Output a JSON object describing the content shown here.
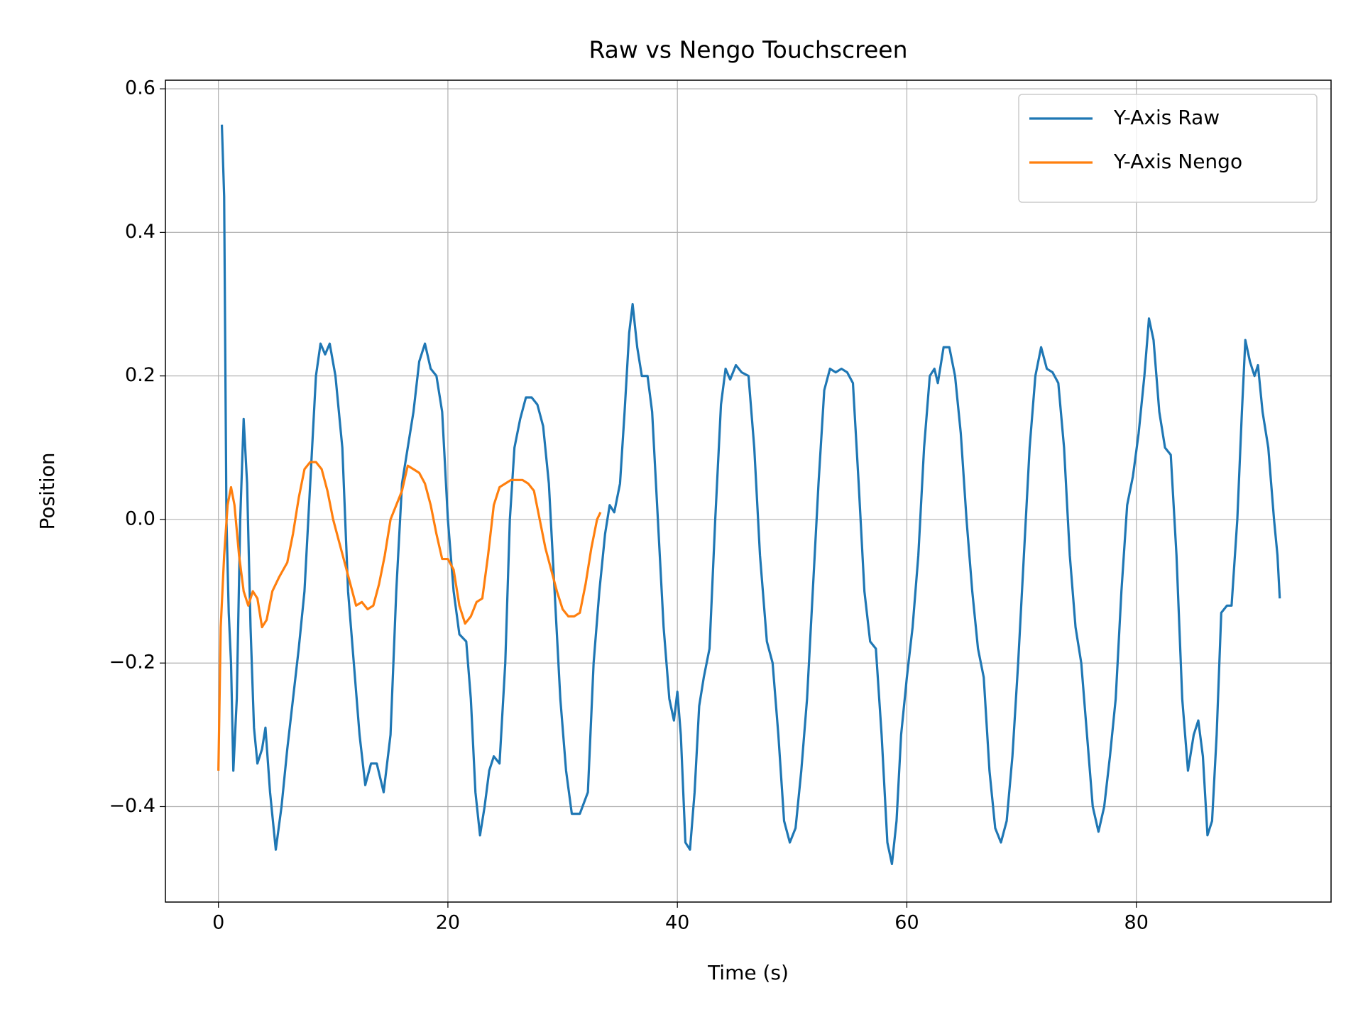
{
  "chart_data": {
    "type": "line",
    "title": "Raw vs Nengo Touchscreen",
    "x_label": "Time (s)",
    "y_label": "Position",
    "xlim": [
      -4.62,
      96.97
    ],
    "ylim": [
      -0.533,
      0.612
    ],
    "xticks": [
      0,
      20,
      40,
      60,
      80
    ],
    "yticks": [
      {
        "value": -0.4,
        "label": "−0.4"
      },
      {
        "value": -0.2,
        "label": "−0.2"
      },
      {
        "value": 0,
        "label": "0.0"
      },
      0.2,
      0.4,
      0.6
    ],
    "grid": true,
    "legend": "upper right",
    "series": [
      {
        "name": "Y-Axis Raw",
        "color": "#1f77b4",
        "x": [
          0.3,
          0.5,
          0.7,
          0.9,
          1.1,
          1.3,
          1.6,
          1.9,
          2.2,
          2.5,
          2.8,
          3.1,
          3.4,
          3.8,
          4.1,
          4.5,
          5.0,
          5.5,
          6.0,
          6.5,
          7.0,
          7.5,
          8.0,
          8.5,
          8.9,
          9.3,
          9.7,
          10.2,
          10.8,
          11.3,
          11.8,
          12.3,
          12.8,
          13.3,
          13.8,
          14.4,
          15.0,
          15.5,
          16.0,
          16.5,
          17.0,
          17.5,
          18.0,
          18.5,
          19.0,
          19.5,
          20.0,
          20.5,
          21.0,
          21.6,
          22.0,
          22.4,
          22.8,
          23.2,
          23.6,
          24.0,
          24.5,
          25.0,
          25.4,
          25.8,
          26.3,
          26.8,
          27.3,
          27.8,
          28.3,
          28.8,
          29.3,
          29.8,
          30.3,
          30.8,
          31.5,
          32.2,
          32.7,
          33.2,
          33.7,
          34.1,
          34.5,
          35.0,
          35.4,
          35.8,
          36.1,
          36.5,
          36.9,
          37.4,
          37.8,
          38.3,
          38.8,
          39.3,
          39.7,
          40.0,
          40.3,
          40.7,
          41.1,
          41.5,
          41.9,
          42.3,
          42.8,
          43.3,
          43.8,
          44.2,
          44.6,
          45.1,
          45.6,
          46.2,
          46.7,
          47.2,
          47.8,
          48.3,
          48.8,
          49.3,
          49.8,
          50.3,
          50.8,
          51.3,
          51.8,
          52.3,
          52.8,
          53.3,
          53.8,
          54.3,
          54.8,
          55.3,
          55.8,
          56.3,
          56.8,
          57.3,
          57.8,
          58.3,
          58.7,
          59.1,
          59.5,
          60.0,
          60.5,
          61.0,
          61.5,
          62.0,
          62.4,
          62.7,
          63.2,
          63.7,
          64.2,
          64.7,
          65.2,
          65.7,
          66.2,
          66.7,
          67.2,
          67.7,
          68.2,
          68.7,
          69.2,
          69.7,
          70.2,
          70.7,
          71.2,
          71.7,
          72.2,
          72.7,
          73.2,
          73.7,
          74.2,
          74.7,
          75.2,
          75.7,
          76.2,
          76.7,
          77.2,
          77.7,
          78.2,
          78.7,
          79.2,
          79.7,
          80.2,
          80.7,
          81.1,
          81.5,
          82.0,
          82.5,
          83.0,
          83.5,
          84.0,
          84.5,
          85.0,
          85.4,
          85.8,
          86.2,
          86.6,
          87.0,
          87.4,
          87.9,
          88.3,
          88.8,
          89.2,
          89.5,
          89.9,
          90.3,
          90.6,
          91.0,
          91.5,
          92.0,
          92.3,
          92.5
        ],
        "values": [
          0.55,
          0.45,
          0.0,
          -0.13,
          -0.2,
          -0.35,
          -0.25,
          0.0,
          0.14,
          0.05,
          -0.15,
          -0.29,
          -0.34,
          -0.32,
          -0.29,
          -0.38,
          -0.46,
          -0.4,
          -0.32,
          -0.25,
          -0.18,
          -0.1,
          0.05,
          0.2,
          0.245,
          0.23,
          0.245,
          0.2,
          0.1,
          -0.1,
          -0.2,
          -0.3,
          -0.37,
          -0.34,
          -0.34,
          -0.38,
          -0.3,
          -0.1,
          0.05,
          0.1,
          0.15,
          0.22,
          0.245,
          0.21,
          0.2,
          0.15,
          0.0,
          -0.1,
          -0.16,
          -0.17,
          -0.25,
          -0.38,
          -0.44,
          -0.4,
          -0.35,
          -0.33,
          -0.34,
          -0.2,
          0.0,
          0.1,
          0.14,
          0.17,
          0.17,
          0.16,
          0.13,
          0.05,
          -0.1,
          -0.25,
          -0.35,
          -0.41,
          -0.41,
          -0.38,
          -0.2,
          -0.1,
          -0.02,
          0.02,
          0.01,
          0.05,
          0.15,
          0.26,
          0.3,
          0.24,
          0.2,
          0.2,
          0.15,
          0.0,
          -0.15,
          -0.25,
          -0.28,
          -0.24,
          -0.3,
          -0.45,
          -0.46,
          -0.38,
          -0.26,
          -0.22,
          -0.18,
          0.0,
          0.16,
          0.21,
          0.195,
          0.215,
          0.205,
          0.2,
          0.1,
          -0.05,
          -0.17,
          -0.2,
          -0.3,
          -0.42,
          -0.45,
          -0.43,
          -0.35,
          -0.25,
          -0.1,
          0.05,
          0.18,
          0.21,
          0.205,
          0.21,
          0.205,
          0.19,
          0.05,
          -0.1,
          -0.17,
          -0.18,
          -0.3,
          -0.45,
          -0.48,
          -0.42,
          -0.3,
          -0.22,
          -0.15,
          -0.05,
          0.1,
          0.2,
          0.21,
          0.19,
          0.24,
          0.24,
          0.2,
          0.12,
          0.0,
          -0.1,
          -0.18,
          -0.22,
          -0.35,
          -0.43,
          -0.45,
          -0.42,
          -0.33,
          -0.2,
          -0.05,
          0.1,
          0.2,
          0.24,
          0.21,
          0.205,
          0.19,
          0.1,
          -0.05,
          -0.15,
          -0.2,
          -0.3,
          -0.4,
          -0.435,
          -0.4,
          -0.33,
          -0.25,
          -0.1,
          0.02,
          0.06,
          0.12,
          0.2,
          0.28,
          0.25,
          0.15,
          0.1,
          0.09,
          -0.05,
          -0.25,
          -0.35,
          -0.3,
          -0.28,
          -0.33,
          -0.44,
          -0.42,
          -0.3,
          -0.13,
          -0.12,
          -0.12,
          0.0,
          0.15,
          0.25,
          0.22,
          0.2,
          0.215,
          0.15,
          0.1,
          0.0,
          -0.05,
          -0.11
        ]
      },
      {
        "name": "Y-Axis Nengo",
        "color": "#ff7f0e",
        "x": [
          0,
          0.2,
          0.5,
          0.8,
          1.1,
          1.4,
          1.8,
          2.2,
          2.6,
          3.0,
          3.4,
          3.8,
          4.2,
          4.7,
          5.3,
          6.0,
          6.5,
          7.0,
          7.5,
          8.0,
          8.5,
          9.0,
          9.5,
          10.0,
          10.5,
          11.0,
          11.5,
          12.0,
          12.5,
          13.0,
          13.5,
          14.0,
          14.5,
          15.0,
          15.5,
          16.0,
          16.5,
          17.0,
          17.5,
          18.0,
          18.5,
          19.0,
          19.5,
          20.0,
          20.5,
          21.0,
          21.5,
          22.0,
          22.5,
          23.0,
          23.5,
          24.0,
          24.5,
          25.0,
          25.5,
          26.0,
          26.5,
          27.0,
          27.5,
          28.0,
          28.5,
          29.0,
          29.5,
          30.0,
          30.5,
          31.0,
          31.5,
          32.0,
          32.5,
          33.0,
          33.3
        ],
        "values": [
          -0.35,
          -0.15,
          -0.05,
          0.02,
          0.045,
          0.02,
          -0.05,
          -0.1,
          -0.12,
          -0.1,
          -0.11,
          -0.15,
          -0.14,
          -0.1,
          -0.08,
          -0.06,
          -0.02,
          0.03,
          0.07,
          0.08,
          0.08,
          0.07,
          0.04,
          0.0,
          -0.03,
          -0.06,
          -0.09,
          -0.12,
          -0.115,
          -0.125,
          -0.12,
          -0.09,
          -0.05,
          0.0,
          0.02,
          0.04,
          0.075,
          0.07,
          0.065,
          0.05,
          0.02,
          -0.02,
          -0.055,
          -0.055,
          -0.07,
          -0.12,
          -0.145,
          -0.135,
          -0.115,
          -0.11,
          -0.05,
          0.02,
          0.045,
          0.05,
          0.055,
          0.055,
          0.055,
          0.05,
          0.04,
          0.0,
          -0.04,
          -0.07,
          -0.1,
          -0.125,
          -0.135,
          -0.135,
          -0.13,
          -0.09,
          -0.04,
          0.0,
          0.01
        ]
      }
    ]
  }
}
